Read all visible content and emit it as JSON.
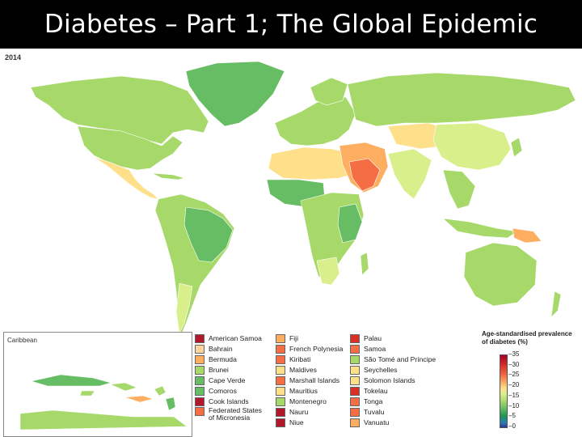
{
  "slide": {
    "title": "Diabetes – Part 1; The Global Epidemic"
  },
  "map": {
    "year": "2014",
    "inset_label": "Caribbean",
    "scale_title": "Age-standardised prevalence of diabetes (%)",
    "scale_ticks": [
      "35",
      "30",
      "25",
      "20",
      "15",
      "10",
      "5",
      "0"
    ],
    "legend_columns": [
      [
        {
          "label": "American Samoa",
          "color": "#b2182b"
        },
        {
          "label": "Bahrain",
          "color": "#fdd49e"
        },
        {
          "label": "Bermuda",
          "color": "#fdae61"
        },
        {
          "label": "Brunei",
          "color": "#a6d96a"
        },
        {
          "label": "Cape Verde",
          "color": "#66bd63"
        },
        {
          "label": "Comoros",
          "color": "#66bd63"
        },
        {
          "label": "Cook Islands",
          "color": "#b2182b"
        },
        {
          "label": "Federated States of Micronesia",
          "color": "#f46d43"
        }
      ],
      [
        {
          "label": "Fiji",
          "color": "#fdae61"
        },
        {
          "label": "French Polynesia",
          "color": "#f46d43"
        },
        {
          "label": "Kiribati",
          "color": "#f46d43"
        },
        {
          "label": "Maldives",
          "color": "#fee08b"
        },
        {
          "label": "Marshall Islands",
          "color": "#f46d43"
        },
        {
          "label": "Mauritius",
          "color": "#fee08b"
        },
        {
          "label": "Montenegro",
          "color": "#a6d96a"
        },
        {
          "label": "Nauru",
          "color": "#b2182b"
        },
        {
          "label": "Niue",
          "color": "#b2182b"
        }
      ],
      [
        {
          "label": "Palau",
          "color": "#d73027"
        },
        {
          "label": "Samoa",
          "color": "#f46d43"
        },
        {
          "label": "São Tomé and Príncipe",
          "color": "#a6d96a"
        },
        {
          "label": "Seychelles",
          "color": "#fee08b"
        },
        {
          "label": "Solomon Islands",
          "color": "#fee08b"
        },
        {
          "label": "Tokelau",
          "color": "#d73027"
        },
        {
          "label": "Tonga",
          "color": "#f46d43"
        },
        {
          "label": "Tuvalu",
          "color": "#f46d43"
        },
        {
          "label": "Vanuatu",
          "color": "#fdae61"
        }
      ]
    ]
  }
}
